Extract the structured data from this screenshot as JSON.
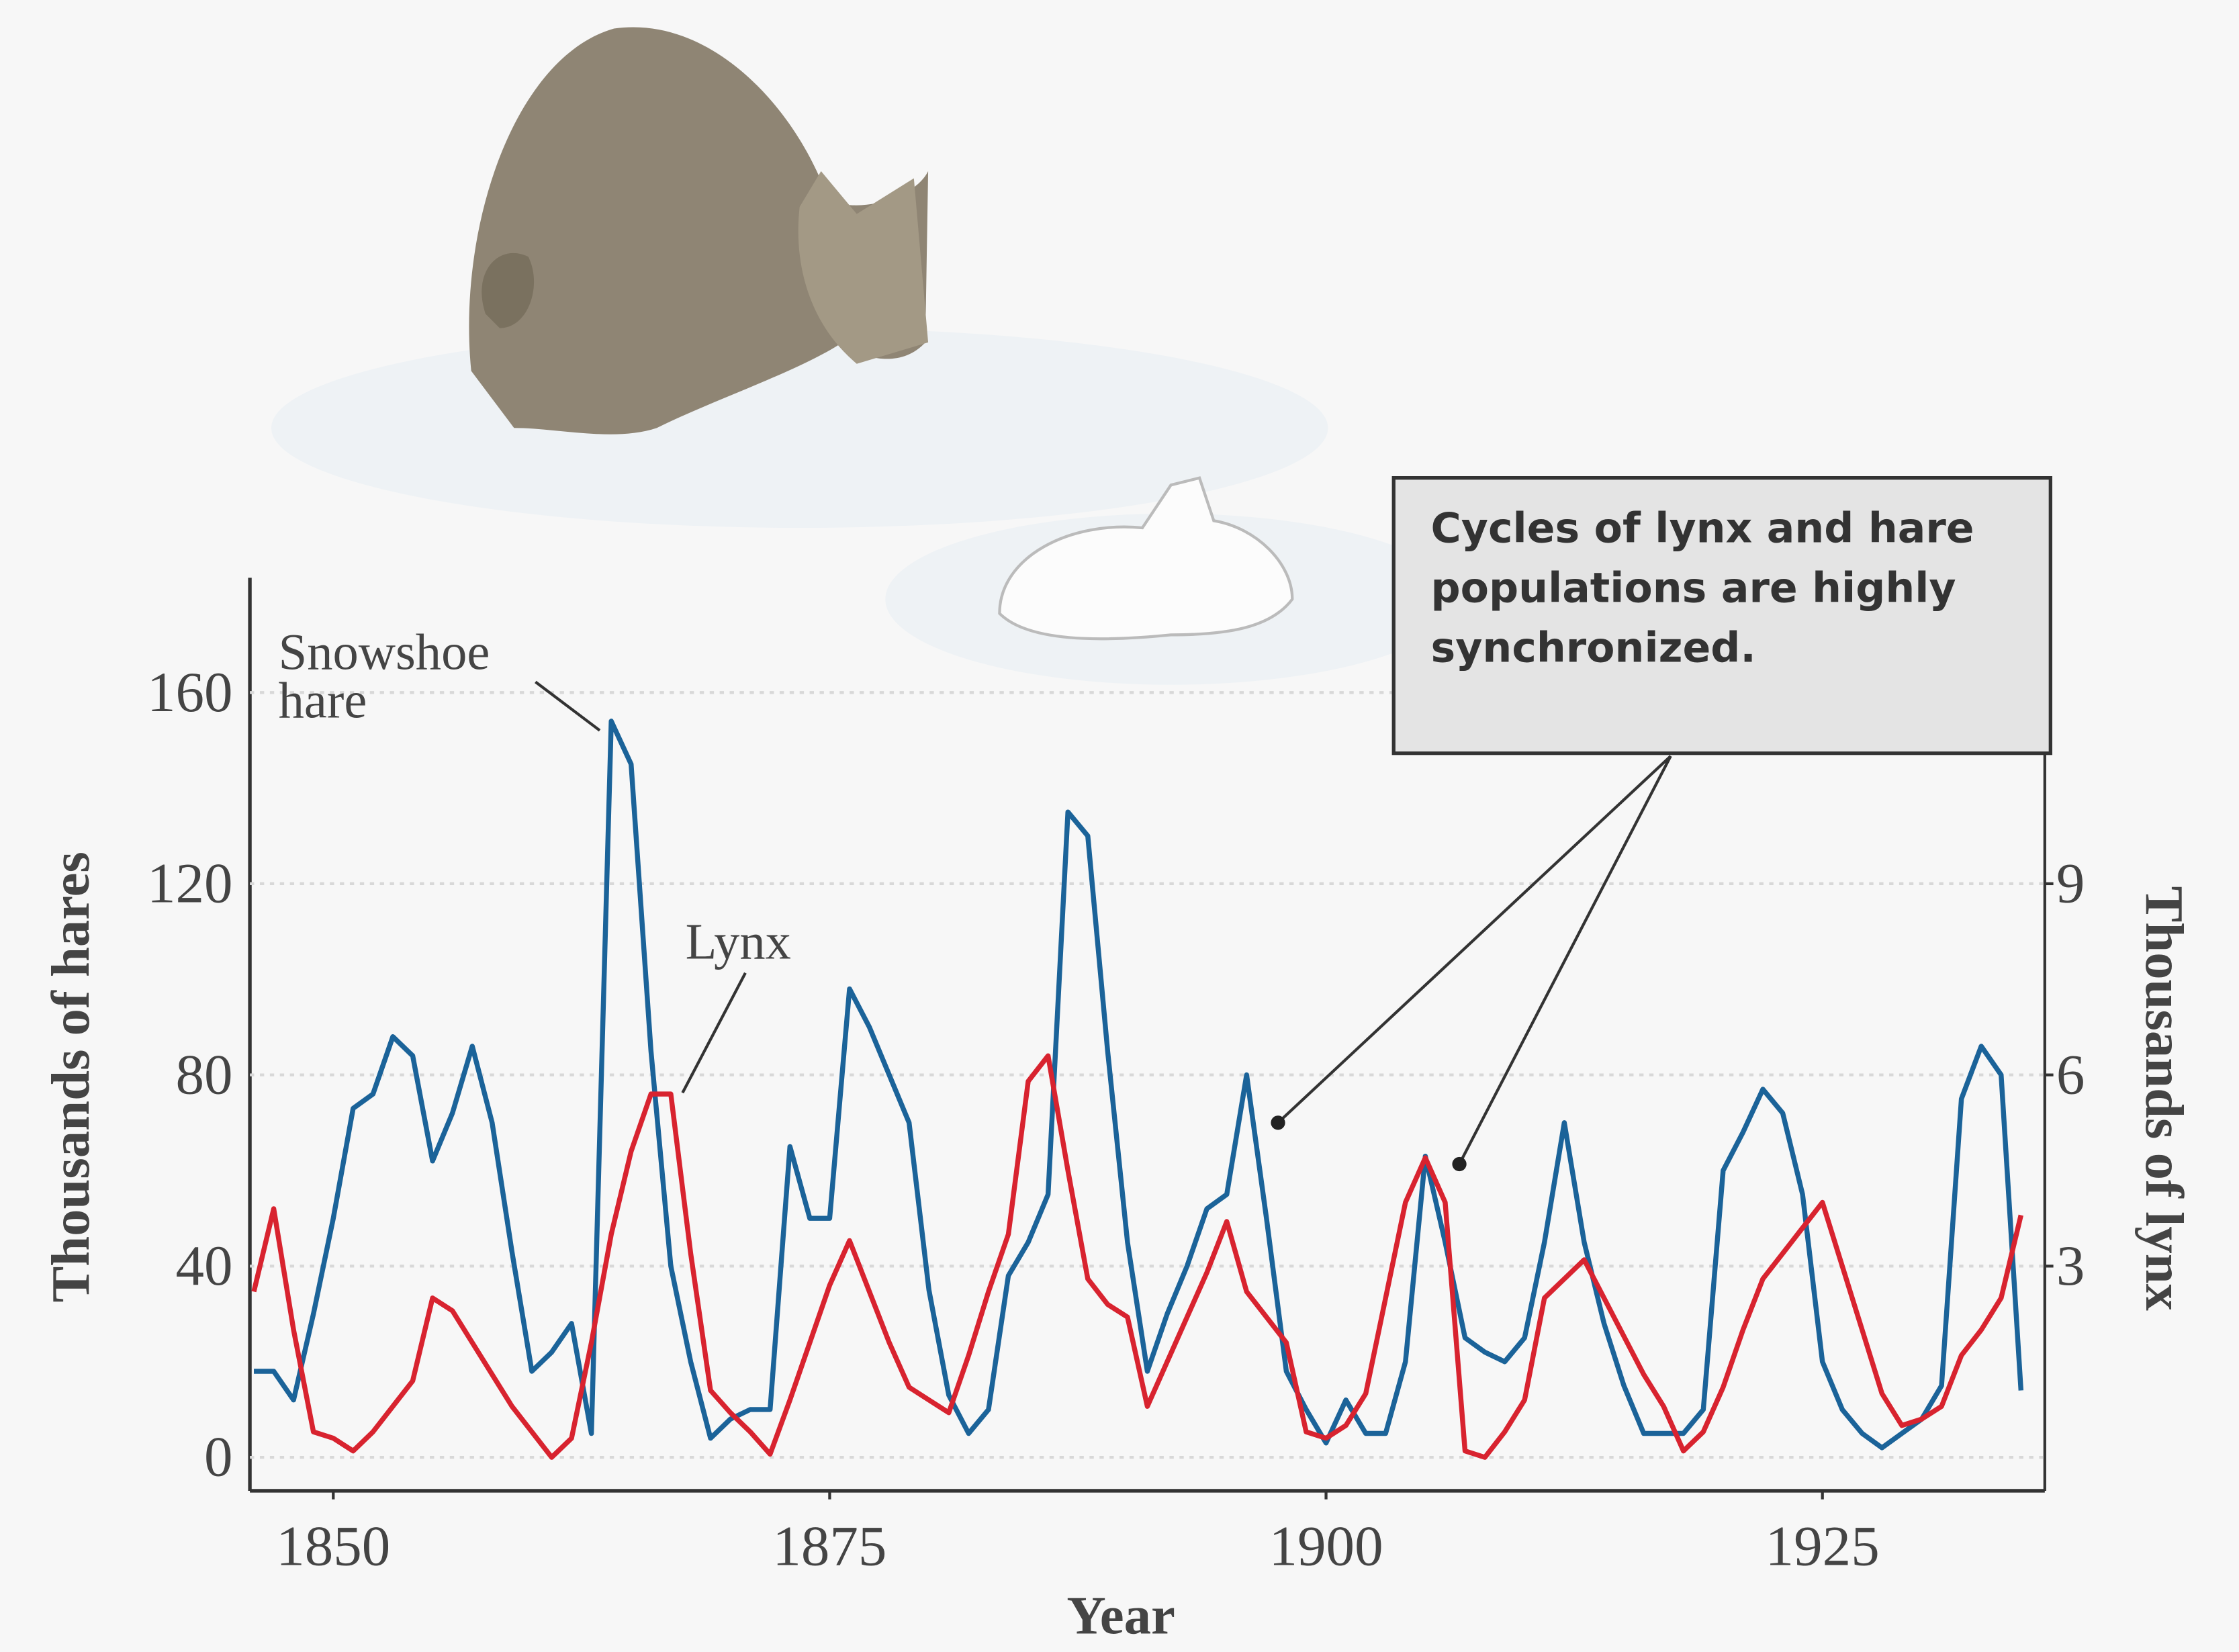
{
  "chart_data": {
    "type": "line",
    "xlabel": "Year",
    "ylabel": "Thousands of hares",
    "y2label": "Thousands of lynx",
    "annotation": "Cycles of lynx and hare populations are highly synchronized.",
    "x": [
      1846,
      1847,
      1848,
      1849,
      1850,
      1851,
      1852,
      1853,
      1854,
      1855,
      1856,
      1857,
      1858,
      1859,
      1860,
      1861,
      1862,
      1863,
      1864,
      1865,
      1866,
      1867,
      1868,
      1869,
      1870,
      1871,
      1872,
      1873,
      1874,
      1875,
      1876,
      1877,
      1878,
      1879,
      1880,
      1881,
      1882,
      1883,
      1884,
      1885,
      1886,
      1887,
      1888,
      1889,
      1890,
      1891,
      1892,
      1893,
      1894,
      1895,
      1896,
      1897,
      1898,
      1899,
      1900,
      1901,
      1902,
      1903,
      1904,
      1905,
      1906,
      1907,
      1908,
      1909,
      1910,
      1911,
      1912,
      1913,
      1914,
      1915,
      1916,
      1917,
      1918,
      1919,
      1920,
      1921,
      1922,
      1923,
      1924,
      1925,
      1926,
      1927,
      1928,
      1929,
      1930,
      1931,
      1932,
      1933,
      1934,
      1935
    ],
    "series": [
      {
        "name": "Snowshoe hare",
        "color": "#1b6399",
        "values": [
          18,
          18,
          12,
          30,
          50,
          73,
          76,
          88,
          84,
          62,
          72,
          86,
          70,
          43,
          18,
          22,
          28,
          5,
          154,
          145,
          85,
          40,
          20,
          4,
          8,
          10,
          10,
          65,
          50,
          50,
          98,
          90,
          80,
          70,
          35,
          13,
          5,
          10,
          38,
          45,
          55,
          135,
          130,
          85,
          45,
          18,
          30,
          40,
          52,
          55,
          80,
          50,
          18,
          10,
          3,
          12,
          5,
          5,
          20,
          63,
          45,
          25,
          22,
          20,
          25,
          45,
          70,
          45,
          28,
          15,
          5,
          5,
          5,
          10,
          60,
          68,
          77,
          72,
          55,
          20,
          10,
          5,
          2,
          5,
          8,
          15,
          75,
          86,
          80,
          14
        ]
      },
      {
        "name": "Lynx",
        "color": "#d8232f",
        "axis": "y2",
        "values": [
          2.6,
          3.9,
          2.0,
          0.4,
          0.3,
          0.1,
          0.4,
          0.8,
          1.2,
          2.5,
          2.3,
          1.8,
          1.3,
          0.8,
          0.4,
          0.0,
          0.3,
          1.8,
          3.5,
          4.8,
          5.7,
          5.7,
          3.2,
          1.05,
          0.7,
          0.4,
          0.05,
          0.9,
          1.8,
          2.7,
          3.4,
          2.6,
          1.8,
          1.1,
          0.9,
          0.7,
          1.6,
          2.6,
          3.5,
          5.9,
          6.3,
          4.5,
          2.8,
          2.4,
          2.2,
          0.8,
          1.5,
          2.2,
          2.9,
          3.7,
          2.6,
          2.2,
          1.8,
          0.4,
          0.3,
          0.5,
          1.0,
          2.5,
          4.0,
          4.7,
          4.0,
          0.1,
          0.0,
          0.4,
          0.9,
          2.5,
          2.8,
          3.1,
          2.5,
          1.9,
          1.3,
          0.8,
          0.1,
          0.4,
          1.1,
          2.0,
          2.8,
          3.2,
          3.6,
          4.0,
          3.0,
          2.0,
          1.0,
          0.5,
          0.6,
          0.8,
          1.6,
          2.0,
          2.5,
          3.8
        ]
      }
    ],
    "xlim": [
      1845.8,
      1936.2
    ],
    "xticks": [
      1850,
      1875,
      1900,
      1925
    ],
    "ylim": [
      -7,
      184
    ],
    "yticks": [
      0,
      40,
      80,
      120,
      160
    ],
    "y2lim": [
      -0.525,
      13.8
    ],
    "y2ticks": [
      3,
      6,
      9
    ],
    "grid": true
  }
}
